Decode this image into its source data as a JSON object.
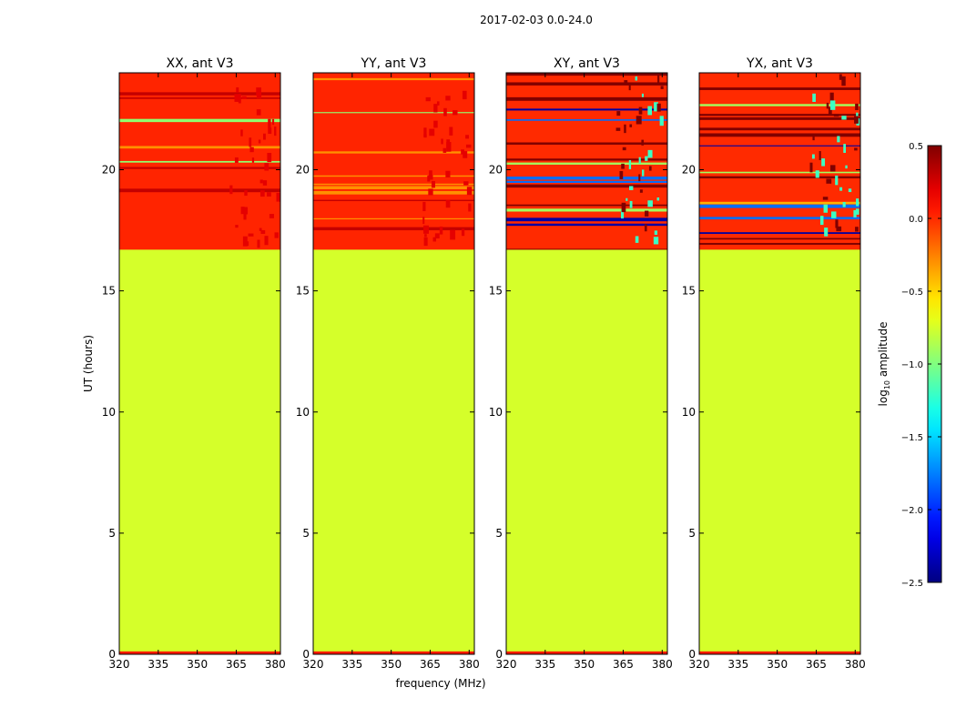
{
  "chart_data": {
    "type": "heatmap",
    "suptitle": "2017-02-03 0.0-24.0",
    "panels": [
      {
        "title": "XX, ant V3",
        "x": [
          320,
          335,
          350,
          365,
          380
        ],
        "y": [
          0,
          5,
          10,
          15,
          20
        ],
        "xlim": [
          320,
          382
        ],
        "ylim": [
          0,
          24
        ],
        "ylabel": "UT (hours)",
        "xlabel": "",
        "bg_value": -0.75,
        "band_value": 0.02,
        "data_start_hour": 16.7,
        "fill_value": -0.75,
        "rfi_value": 0.2,
        "rfi_mhz": [
          362,
          381
        ]
      },
      {
        "title": "YY, ant V3",
        "x": [
          320,
          335,
          350,
          365,
          380
        ],
        "y": [
          0,
          5,
          10,
          15,
          20
        ],
        "xlim": [
          320,
          382
        ],
        "ylim": [
          0,
          24
        ],
        "ylabel": "",
        "xlabel": "frequency (MHz)",
        "bg_value": -0.75,
        "band_value": 0.02,
        "data_start_hour": 16.7,
        "fill_value": -0.75,
        "rfi_value": 0.2,
        "rfi_mhz": [
          362,
          381
        ]
      },
      {
        "title": "XY, ant V3",
        "x": [
          320,
          335,
          350,
          365,
          380
        ],
        "y": [
          0,
          5,
          10,
          15,
          20
        ],
        "xlim": [
          320,
          382
        ],
        "ylim": [
          0,
          24
        ],
        "ylabel": "",
        "xlabel": "",
        "bg_value": -0.75,
        "band_value": 0.0,
        "data_start_hour": 16.7,
        "fill_value": -0.75,
        "rfi_value": -1.2,
        "rfi_mhz": [
          362,
          381
        ]
      },
      {
        "title": "YX, ant V3",
        "x": [
          320,
          335,
          350,
          365,
          380
        ],
        "y": [
          0,
          5,
          10,
          15,
          20
        ],
        "xlim": [
          320,
          382
        ],
        "ylim": [
          0,
          24
        ],
        "ylabel": "",
        "xlabel": "",
        "bg_value": -0.75,
        "band_value": 0.0,
        "data_start_hour": 16.7,
        "fill_value": -0.75,
        "rfi_value": -1.2,
        "rfi_mhz": [
          362,
          381
        ]
      }
    ],
    "colorbar": {
      "label": "log10 amplitude",
      "label_main": "log",
      "label_sub": "10",
      "label_rest": " amplitude",
      "range": [
        -2.5,
        0.5
      ],
      "ticks": [
        0.5,
        0.0,
        -0.5,
        -1.0,
        -1.5,
        -2.0,
        -2.5
      ],
      "tick_labels": [
        "0.5",
        "0.0",
        "−0.5",
        "−1.0",
        "−1.5",
        "−2.0",
        "−2.5"
      ],
      "colormap": "jet"
    }
  }
}
